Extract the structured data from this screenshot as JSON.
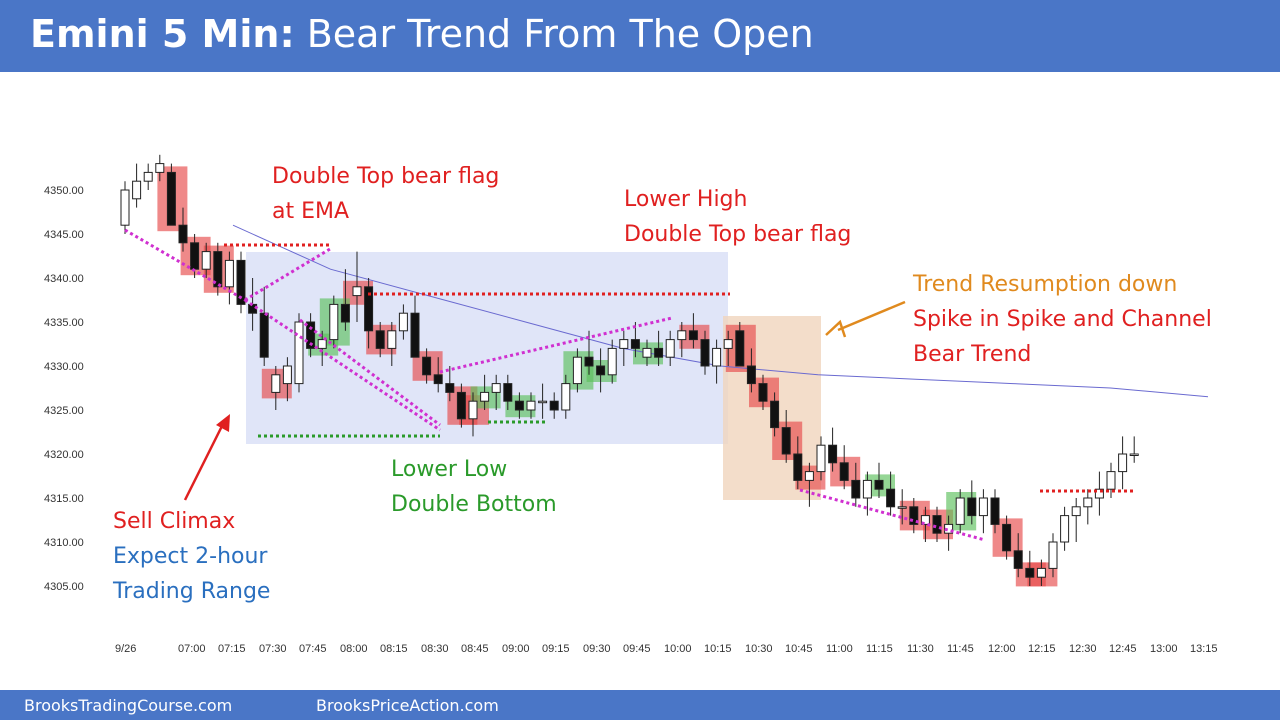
{
  "header": {
    "title_bold": "Emini 5 Min:",
    "title_rest": " Bear Trend From The Open"
  },
  "footer": {
    "left": "BrooksTradingCourse.com",
    "right": "BrooksPriceAction.com"
  },
  "colors": {
    "header": "#4a76c7",
    "bear_bar": "#e64a4a",
    "bull_bar": "#5cc05c",
    "ema": "#6a6ad0",
    "range_box": "#d5dcf5",
    "spike_box": "#f0d4bd",
    "red": "#e02020",
    "green": "#2a9a2a",
    "blue": "#2a6fbf",
    "orange": "#e08a1e",
    "magenta": "#d030d0"
  },
  "chart_data": {
    "type": "candlestick",
    "title": "Emini 5 Min: Bear Trend From The Open",
    "ylim": [
      4303,
      4355
    ],
    "y_ticks": [
      "4350.00",
      "4345.00",
      "4340.00",
      "4335.00",
      "4330.00",
      "4325.00",
      "4320.00",
      "4315.00",
      "4310.00",
      "4305.00"
    ],
    "y_tick_values": [
      4350,
      4345,
      4340,
      4335,
      4330,
      4325,
      4320,
      4315,
      4310,
      4305
    ],
    "x_ticks": [
      "9/26",
      "07:00",
      "07:15",
      "07:30",
      "07:45",
      "08:00",
      "08:15",
      "08:30",
      "08:45",
      "09:00",
      "09:15",
      "09:30",
      "09:45",
      "10:00",
      "10:15",
      "10:30",
      "10:45",
      "11:00",
      "11:15",
      "11:30",
      "11:45",
      "12:00",
      "12:15",
      "12:30",
      "12:45",
      "13:00",
      "13:15"
    ],
    "bars": [
      [
        4346,
        4351,
        4345,
        4350
      ],
      [
        4349,
        4353,
        4348,
        4351
      ],
      [
        4351,
        4353,
        4350,
        4352
      ],
      [
        4352,
        4354,
        4351,
        4353
      ],
      [
        4352,
        4353,
        4346,
        4346
      ],
      [
        4346,
        4348,
        4343,
        4344
      ],
      [
        4344,
        4345,
        4340,
        4341
      ],
      [
        4341,
        4344,
        4340,
        4343
      ],
      [
        4343,
        4344,
        4338,
        4339
      ],
      [
        4339,
        4343,
        4337,
        4342
      ],
      [
        4342,
        4343,
        4336,
        4337
      ],
      [
        4337,
        4340,
        4334,
        4336
      ],
      [
        4336,
        4339,
        4330,
        4331
      ],
      [
        4327,
        4330,
        4325,
        4329
      ],
      [
        4328,
        4331,
        4326,
        4330
      ],
      [
        4328,
        4336,
        4327,
        4335
      ],
      [
        4335,
        4336,
        4331,
        4332
      ],
      [
        4332,
        4334,
        4330,
        4333
      ],
      [
        4333,
        4338,
        4332,
        4337
      ],
      [
        4337,
        4341,
        4334,
        4335
      ],
      [
        4338,
        4343,
        4335,
        4339
      ],
      [
        4339,
        4340,
        4332,
        4334
      ],
      [
        4334,
        4335,
        4331,
        4332
      ],
      [
        4332,
        4335,
        4330,
        4334
      ],
      [
        4334,
        4337,
        4333,
        4336
      ],
      [
        4336,
        4338,
        4331,
        4331
      ],
      [
        4331,
        4332,
        4328,
        4329
      ],
      [
        4329,
        4331,
        4327,
        4328
      ],
      [
        4328,
        4330,
        4326,
        4327
      ],
      [
        4327,
        4328,
        4323,
        4324
      ],
      [
        4324,
        4327,
        4322,
        4326
      ],
      [
        4326,
        4329,
        4325,
        4327
      ],
      [
        4327,
        4329,
        4325,
        4328
      ],
      [
        4328,
        4329,
        4325,
        4326
      ],
      [
        4326,
        4327,
        4324,
        4325
      ],
      [
        4325,
        4327,
        4324,
        4326
      ],
      [
        4326,
        4328,
        4324,
        4326
      ],
      [
        4326,
        4327,
        4324,
        4325
      ],
      [
        4325,
        4329,
        4324,
        4328
      ],
      [
        4328,
        4332,
        4327,
        4331
      ],
      [
        4331,
        4334,
        4329,
        4330
      ],
      [
        4330,
        4332,
        4327,
        4329
      ],
      [
        4329,
        4333,
        4328,
        4332
      ],
      [
        4332,
        4334,
        4330,
        4333
      ],
      [
        4333,
        4335,
        4331,
        4332
      ],
      [
        4331,
        4333,
        4330,
        4332
      ],
      [
        4332,
        4334,
        4330,
        4331
      ],
      [
        4331,
        4334,
        4330,
        4333
      ],
      [
        4333,
        4335,
        4331,
        4334
      ],
      [
        4334,
        4336,
        4332,
        4333
      ],
      [
        4333,
        4334,
        4329,
        4330
      ],
      [
        4330,
        4333,
        4328,
        4332
      ],
      [
        4332,
        4334,
        4330,
        4333
      ],
      [
        4334,
        4335,
        4330,
        4330
      ],
      [
        4330,
        4332,
        4327,
        4328
      ],
      [
        4328,
        4329,
        4325,
        4326
      ],
      [
        4326,
        4327,
        4322,
        4323
      ],
      [
        4323,
        4325,
        4319,
        4320
      ],
      [
        4320,
        4322,
        4316,
        4317
      ],
      [
        4317,
        4319,
        4314,
        4318
      ],
      [
        4318,
        4322,
        4317,
        4321
      ],
      [
        4321,
        4323,
        4318,
        4319
      ],
      [
        4319,
        4321,
        4316,
        4317
      ],
      [
        4317,
        4319,
        4314,
        4315
      ],
      [
        4315,
        4318,
        4313,
        4317
      ],
      [
        4317,
        4319,
        4315,
        4316
      ],
      [
        4316,
        4318,
        4313,
        4314
      ],
      [
        4314,
        4316,
        4312,
        4314
      ],
      [
        4314,
        4315,
        4311,
        4312
      ],
      [
        4312,
        4314,
        4310,
        4313
      ],
      [
        4313,
        4314,
        4310,
        4311
      ],
      [
        4311,
        4313,
        4309,
        4312
      ],
      [
        4312,
        4316,
        4311,
        4315
      ],
      [
        4315,
        4317,
        4312,
        4313
      ],
      [
        4313,
        4316,
        4311,
        4315
      ],
      [
        4315,
        4316,
        4311,
        4312
      ],
      [
        4312,
        4313,
        4308,
        4309
      ],
      [
        4309,
        4311,
        4306,
        4307
      ],
      [
        4307,
        4309,
        4305,
        4306
      ],
      [
        4306,
        4308,
        4305,
        4307
      ],
      [
        4307,
        4311,
        4306,
        4310
      ],
      [
        4310,
        4314,
        4309,
        4313
      ],
      [
        4313,
        4315,
        4310,
        4314
      ],
      [
        4314,
        4316,
        4312,
        4315
      ],
      [
        4315,
        4318,
        4313,
        4316
      ],
      [
        4316,
        4319,
        4315,
        4318
      ],
      [
        4318,
        4322,
        4316,
        4320
      ],
      [
        4320,
        4322,
        4319,
        4320
      ]
    ],
    "ema": [
      [
        4351,
        4346
      ],
      [
        4340,
        4341
      ],
      [
        4335,
        4338
      ],
      [
        4330,
        4335
      ],
      [
        4325,
        4332
      ],
      [
        4320,
        4330
      ],
      [
        4315,
        4329
      ],
      [
        4310,
        4328.5
      ],
      [
        4305,
        4328
      ],
      [
        4300,
        4327.5
      ],
      [
        4295,
        4326.5
      ]
    ],
    "annotations": [
      {
        "lines": [
          "Double Top bear flag",
          "at EMA"
        ],
        "color": "red"
      },
      {
        "lines": [
          "Lower High",
          "Double Top bear flag"
        ],
        "color": "red"
      },
      {
        "lines": [
          "Trend Resumption down"
        ],
        "color": "orange"
      },
      {
        "lines": [
          "Spike in Spike and Channel",
          "Bear Trend"
        ],
        "color": "red"
      },
      {
        "lines": [
          "Lower Low",
          "Double Bottom"
        ],
        "color": "green"
      },
      {
        "lines": [
          "Sell Climax"
        ],
        "color": "red"
      },
      {
        "lines": [
          "Expect 2-hour",
          "Trading Range"
        ],
        "color": "blue"
      }
    ]
  }
}
